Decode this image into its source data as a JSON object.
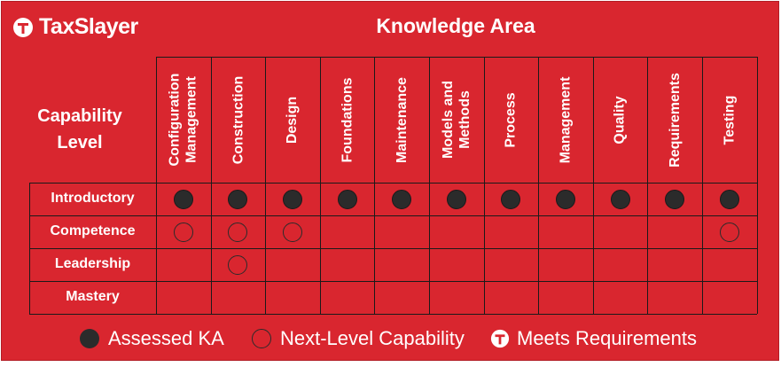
{
  "brand": {
    "name": "TaxSlayer",
    "logo_icon": "taxslayer-logo-icon"
  },
  "header": {
    "knowledge_area": "Knowledge Area",
    "capability_level_line1": "Capability",
    "capability_level_line2": "Level"
  },
  "columns": [
    {
      "line1": "Configuration",
      "line2": "Management"
    },
    {
      "line1": "Construction",
      "line2": ""
    },
    {
      "line1": "Design",
      "line2": ""
    },
    {
      "line1": "Foundations",
      "line2": ""
    },
    {
      "line1": "Maintenance",
      "line2": ""
    },
    {
      "line1": "Models and",
      "line2": "Methods"
    },
    {
      "line1": "Process",
      "line2": ""
    },
    {
      "line1": "Management",
      "line2": ""
    },
    {
      "line1": "Quality",
      "line2": ""
    },
    {
      "line1": "Requirements",
      "line2": ""
    },
    {
      "line1": "Testing",
      "line2": ""
    }
  ],
  "rows": [
    {
      "label": "Introductory",
      "cells": [
        "assessed",
        "assessed",
        "assessed",
        "assessed",
        "assessed",
        "assessed",
        "assessed",
        "assessed",
        "assessed",
        "assessed",
        "assessed"
      ]
    },
    {
      "label": "Competence",
      "cells": [
        "next",
        "next",
        "next",
        "",
        "",
        "",
        "",
        "",
        "",
        "",
        "next"
      ]
    },
    {
      "label": "Leadership",
      "cells": [
        "",
        "next",
        "",
        "",
        "",
        "",
        "",
        "",
        "",
        "",
        ""
      ]
    },
    {
      "label": "Mastery",
      "cells": [
        "",
        "",
        "",
        "",
        "",
        "",
        "",
        "",
        "",
        "",
        ""
      ]
    }
  ],
  "legend": {
    "assessed": "Assessed KA",
    "next_level": "Next-Level Capability",
    "meets": "Meets Requirements"
  },
  "colors": {
    "background": "#d9262f",
    "dot": "#2b2b2b",
    "text": "#ffffff"
  }
}
